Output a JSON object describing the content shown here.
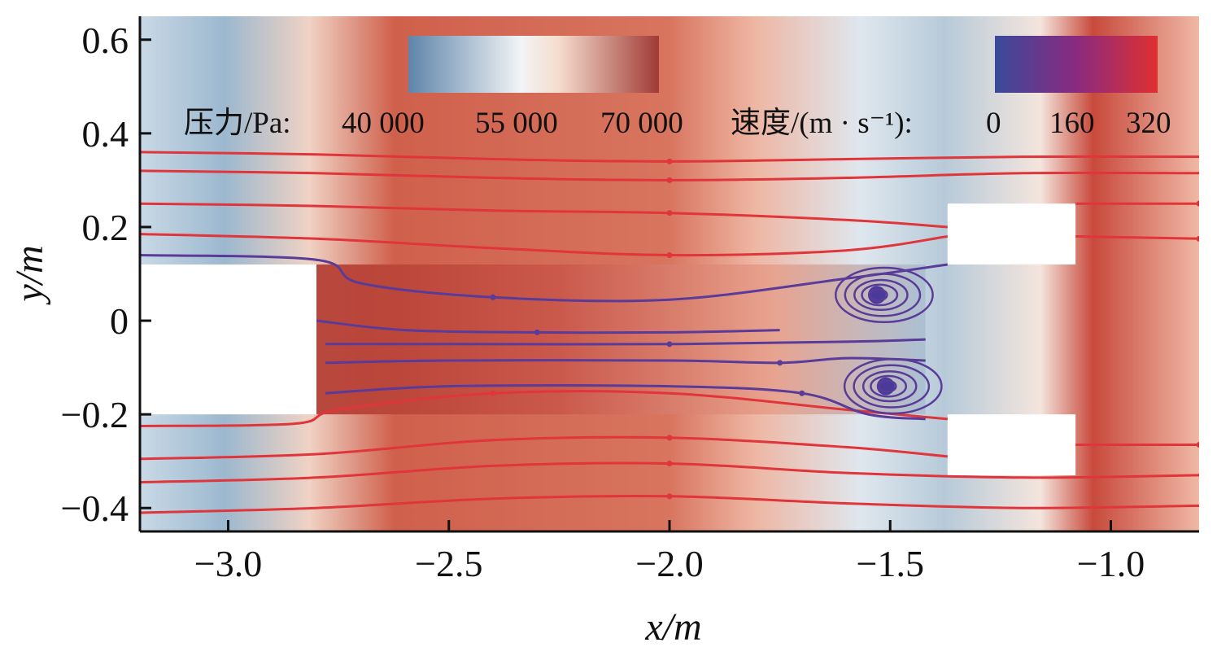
{
  "chart_data": {
    "type": "contour-streamline",
    "x_axis": {
      "label": "x/m",
      "range": [
        -3.2,
        -0.8
      ],
      "ticks": [
        -3.0,
        -2.5,
        -2.0,
        -1.5,
        -1.0
      ],
      "tick_labels": [
        "−3.0",
        "−2.5",
        "−2.0",
        "−1.5",
        "−1.0"
      ]
    },
    "y_axis": {
      "label": "y/m",
      "range": [
        -0.45,
        0.65
      ],
      "ticks": [
        0.6,
        0.4,
        0.2,
        0.0,
        -0.2,
        -0.4
      ],
      "tick_labels": [
        "0.6",
        "0.4",
        "0.2",
        "0",
        "−0.2",
        "−0.4"
      ]
    },
    "pressure_colorbar": {
      "label": "压力/Pa:",
      "tick_labels": [
        "40 000",
        "55 000",
        "70 000"
      ],
      "values": [
        40000,
        55000,
        70000
      ],
      "colors": [
        "#5f85aa",
        "#f2f4f6",
        "#f5dccd",
        "#a03a35"
      ]
    },
    "velocity_colorbar": {
      "label": "速度/(m · s⁻¹):",
      "tick_labels": [
        "0",
        "160",
        "320"
      ],
      "values": [
        0,
        160,
        320
      ],
      "colors": [
        "#3a4a9a",
        "#8a2a80",
        "#e03030"
      ]
    },
    "walls": [
      {
        "x": [
          -3.2,
          -2.8
        ],
        "y": [
          -0.2,
          0.12
        ]
      },
      {
        "x": [
          -1.37,
          -1.08
        ],
        "y": [
          0.12,
          0.25
        ]
      },
      {
        "x": [
          -1.37,
          -1.08
        ],
        "y": [
          -0.33,
          -0.2
        ]
      }
    ],
    "streamlines": {
      "outer_upper": [
        {
          "x": [
            -3.2,
            -2.8,
            -2.4,
            -2.0,
            -1.6,
            -1.2,
            -0.8
          ],
          "y": [
            0.36,
            0.355,
            0.345,
            0.34,
            0.345,
            0.35,
            0.35
          ]
        },
        {
          "x": [
            -3.2,
            -2.8,
            -2.4,
            -2.0,
            -1.6,
            -1.2,
            -0.8
          ],
          "y": [
            0.32,
            0.315,
            0.305,
            0.3,
            0.305,
            0.315,
            0.315
          ]
        },
        {
          "x": [
            -3.2,
            -2.8,
            -2.4,
            -2.0,
            -1.6,
            -1.37
          ],
          "y": [
            0.25,
            0.245,
            0.235,
            0.23,
            0.215,
            0.2
          ]
        },
        {
          "x": [
            -1.08,
            -0.8
          ],
          "y": [
            0.25,
            0.25
          ]
        },
        {
          "x": [
            -3.2,
            -2.8,
            -2.4,
            -2.0,
            -1.6,
            -1.37
          ],
          "y": [
            0.185,
            0.175,
            0.155,
            0.14,
            0.15,
            0.18
          ]
        },
        {
          "x": [
            -1.08,
            -0.8
          ],
          "y": [
            0.18,
            0.175
          ]
        }
      ],
      "outer_lower": [
        {
          "x": [
            -3.2,
            -2.85,
            -2.75,
            -2.4,
            -2.0,
            -1.6,
            -1.37
          ],
          "y": [
            -0.225,
            -0.22,
            -0.19,
            -0.155,
            -0.155,
            -0.19,
            -0.21
          ]
        },
        {
          "x": [
            -3.2,
            -2.8,
            -2.4,
            -2.0,
            -1.6,
            -1.37
          ],
          "y": [
            -0.295,
            -0.285,
            -0.255,
            -0.25,
            -0.27,
            -0.29
          ]
        },
        {
          "x": [
            -1.08,
            -0.8
          ],
          "y": [
            -0.265,
            -0.265
          ]
        },
        {
          "x": [
            -3.2,
            -2.8,
            -2.4,
            -2.0,
            -1.6,
            -1.2,
            -0.8
          ],
          "y": [
            -0.345,
            -0.335,
            -0.31,
            -0.305,
            -0.325,
            -0.335,
            -0.33
          ]
        },
        {
          "x": [
            -3.2,
            -2.8,
            -2.4,
            -2.0,
            -1.6,
            -1.2,
            -0.8
          ],
          "y": [
            -0.41,
            -0.4,
            -0.38,
            -0.375,
            -0.39,
            -0.4,
            -0.395
          ]
        }
      ],
      "core": [
        {
          "x": [
            -3.2,
            -2.8,
            -2.7,
            -2.4,
            -2.0,
            -1.6,
            -1.37
          ],
          "y": [
            0.14,
            0.13,
            0.08,
            0.05,
            0.045,
            0.09,
            0.12
          ]
        },
        {
          "x": [
            -2.8,
            -2.6,
            -2.3,
            -2.0,
            -1.75
          ],
          "y": [
            0.0,
            -0.02,
            -0.025,
            -0.025,
            -0.02
          ]
        },
        {
          "x": [
            -2.78,
            -2.5,
            -2.0,
            -1.6,
            -1.42
          ],
          "y": [
            -0.05,
            -0.05,
            -0.05,
            -0.045,
            -0.04
          ]
        },
        {
          "x": [
            -2.78,
            -2.5,
            -2.0,
            -1.75,
            -1.6,
            -1.42
          ],
          "y": [
            -0.09,
            -0.085,
            -0.085,
            -0.09,
            -0.08,
            -0.085
          ]
        },
        {
          "x": [
            -2.78,
            -2.5,
            -2.0,
            -1.7,
            -1.55,
            -1.42
          ],
          "y": [
            -0.155,
            -0.14,
            -0.14,
            -0.155,
            -0.2,
            -0.21
          ]
        }
      ],
      "vortices": [
        {
          "center": [
            -1.53,
            0.055
          ],
          "radii_x": [
            0.02,
            0.04,
            0.06,
            0.085,
            0.11
          ],
          "radii_y": [
            0.012,
            0.022,
            0.032,
            0.045,
            0.058
          ]
        },
        {
          "center": [
            -1.51,
            -0.14
          ],
          "radii_x": [
            0.02,
            0.04,
            0.06,
            0.085,
            0.11
          ],
          "radii_y": [
            0.012,
            0.022,
            0.032,
            0.045,
            0.058
          ]
        }
      ]
    }
  }
}
